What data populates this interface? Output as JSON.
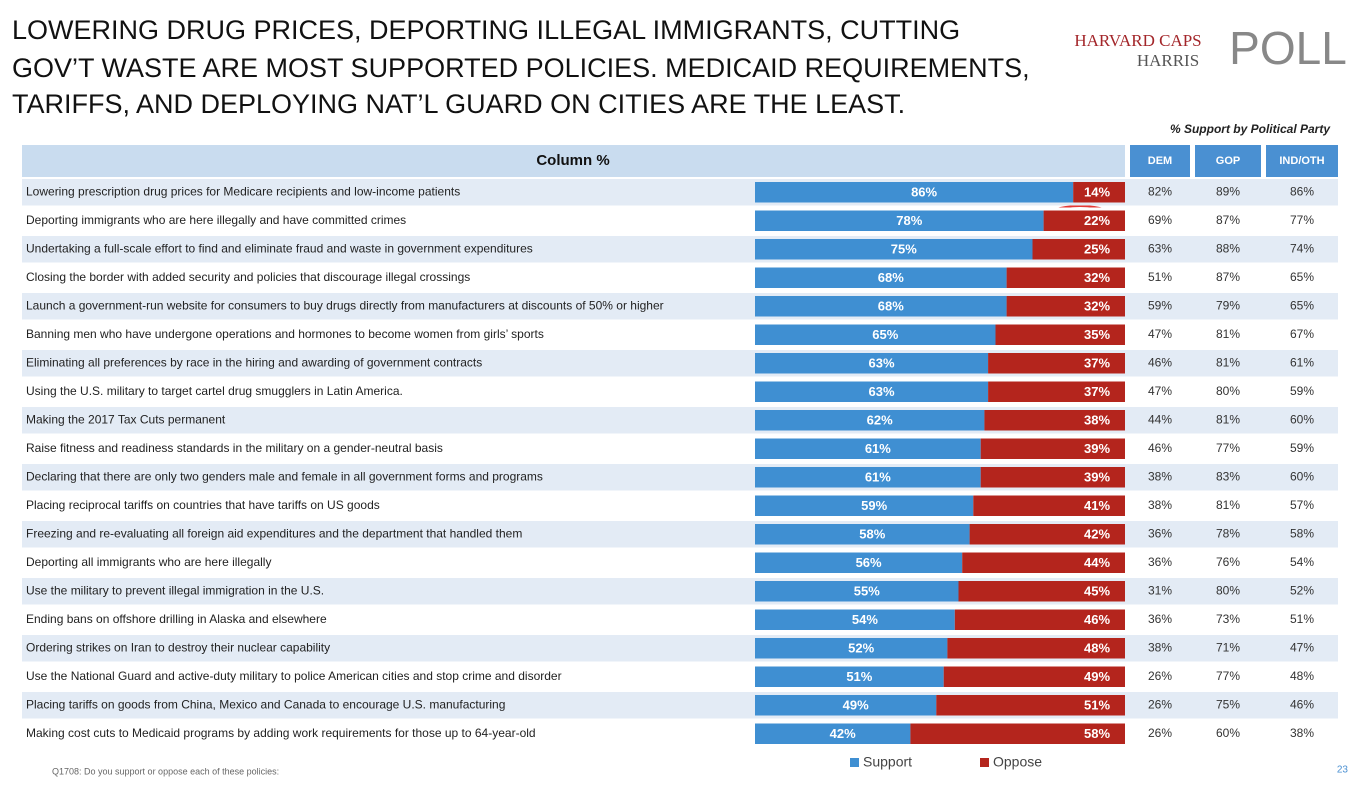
{
  "title_lines": [
    "LOWERING DRUG PRICES, DEPORTING ILLEGAL IMMIGRANTS, CUTTING",
    "GOV’T WASTE ARE MOST SUPPORTED POLICIES. MEDICAID REQUIREMENTS,",
    "TARIFFS, AND DEPLOYING NAT’L GUARD ON CITIES ARE THE LEAST."
  ],
  "logo": {
    "line1": "HARVARD CAPS",
    "line2": "HARRIS",
    "line3": "POLL"
  },
  "party_caption": "% Support by Political Party",
  "chart_data": {
    "type": "bar",
    "orientation": "horizontal",
    "stacked": true,
    "column_header": "Column %",
    "categories": [
      "Lowering prescription drug prices for Medicare recipients and low-income patients",
      "Deporting immigrants who are here illegally and have committed crimes",
      "Undertaking a full-scale effort to find and eliminate fraud and waste in government expenditures",
      "Closing the border with added security and policies that discourage illegal crossings",
      "Launch a government-run website for consumers to buy drugs directly from manufacturers at discounts of 50% or higher",
      "Banning men who have undergone operations and hormones to become women from girls’ sports",
      "Eliminating all preferences by race in the hiring and awarding of government contracts",
      "Using the U.S. military to target cartel drug smugglers in Latin America.",
      "Making the 2017 Tax Cuts permanent",
      "Raise fitness and readiness standards in the military on a gender-neutral basis",
      "Declaring that there are only two genders male and female in all government forms and programs",
      "Placing reciprocal tariffs on countries that have tariffs on US goods",
      "Freezing and re-evaluating all foreign aid expenditures and the department that handled them",
      "Deporting all immigrants who are here illegally",
      "Use the military to prevent illegal immigration in the U.S.",
      "Ending bans on offshore drilling in Alaska and elsewhere",
      "Ordering strikes on Iran to destroy their nuclear capability",
      "Use the National Guard and active-duty military to police American cities and stop crime and disorder",
      "Placing tariffs on goods from China, Mexico and Canada to encourage U.S. manufacturing",
      "Making cost cuts to Medicaid programs by adding work requirements for those up to 64-year-old"
    ],
    "series": [
      {
        "name": "Support",
        "color": "#3f8fd2",
        "values": [
          86,
          78,
          75,
          68,
          68,
          65,
          63,
          63,
          62,
          61,
          61,
          59,
          58,
          56,
          55,
          54,
          52,
          51,
          49,
          42
        ],
        "value_labels": [
          "86%",
          "78%",
          "75%",
          "68%",
          "68%",
          "65%",
          "63%",
          "63%",
          "62%",
          "61%",
          "61%",
          "59%",
          "58%",
          "56%",
          "55%",
          "54%",
          "52%",
          "51%",
          "49%",
          "42%"
        ]
      },
      {
        "name": "Oppose",
        "color": "#b4251d",
        "values": [
          14,
          22,
          25,
          32,
          32,
          35,
          37,
          37,
          38,
          39,
          39,
          41,
          42,
          44,
          45,
          46,
          48,
          49,
          51,
          58
        ],
        "value_labels": [
          "14%",
          "22%",
          "25%",
          "32%",
          "32%",
          "35%",
          "37%",
          "37%",
          "38%",
          "39%",
          "39%",
          "41%",
          "42%",
          "44%",
          "45%",
          "46%",
          "48%",
          "49%",
          "51%",
          "58%"
        ]
      }
    ],
    "xlim": [
      0,
      100
    ]
  },
  "party_table": {
    "columns": [
      "DEM",
      "GOP",
      "IND/OTH"
    ],
    "rows": [
      [
        "82%",
        "89%",
        "86%"
      ],
      [
        "69%",
        "87%",
        "77%"
      ],
      [
        "63%",
        "88%",
        "74%"
      ],
      [
        "51%",
        "87%",
        "65%"
      ],
      [
        "59%",
        "79%",
        "65%"
      ],
      [
        "47%",
        "81%",
        "67%"
      ],
      [
        "46%",
        "81%",
        "61%"
      ],
      [
        "47%",
        "80%",
        "59%"
      ],
      [
        "44%",
        "81%",
        "60%"
      ],
      [
        "46%",
        "77%",
        "59%"
      ],
      [
        "38%",
        "83%",
        "60%"
      ],
      [
        "38%",
        "81%",
        "57%"
      ],
      [
        "36%",
        "78%",
        "58%"
      ],
      [
        "36%",
        "76%",
        "54%"
      ],
      [
        "31%",
        "80%",
        "52%"
      ],
      [
        "36%",
        "73%",
        "51%"
      ],
      [
        "38%",
        "71%",
        "47%"
      ],
      [
        "26%",
        "77%",
        "48%"
      ],
      [
        "26%",
        "75%",
        "46%"
      ],
      [
        "26%",
        "60%",
        "38%"
      ]
    ]
  },
  "footnote": "Q1708: Do you support or oppose each of these policies:",
  "page_number": "23"
}
